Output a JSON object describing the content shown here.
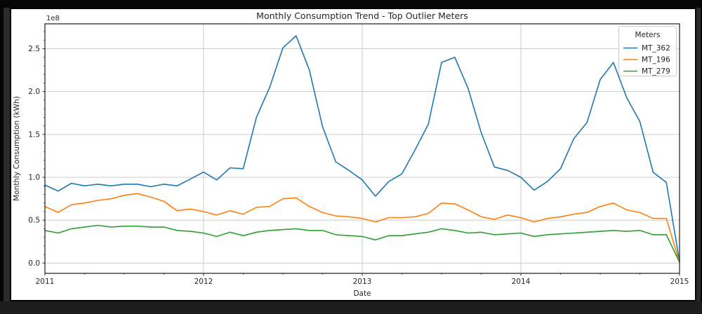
{
  "window": {
    "background_color": "#2b2b2b",
    "frame_color": "#060606",
    "figure_background": "#ffffff"
  },
  "chart_data": {
    "type": "line",
    "title": "Monthly Consumption Trend - Top Outlier Meters",
    "xlabel": "Date",
    "ylabel": "Monthly Consumption (kWh)",
    "y_offset_text": "1e8",
    "y_value_scale": "values are in units of 1e8 kWh",
    "x_interval": "month",
    "x_start": "2011-01",
    "x_end": "2015-01",
    "xlim": [
      0,
      48
    ],
    "ylim": [
      -0.12,
      2.79
    ],
    "x_tick_labels": [
      "2011",
      "2012",
      "2013",
      "2014",
      "2015"
    ],
    "x_tick_positions": [
      0,
      12,
      24,
      36,
      48
    ],
    "x_minor_tick_step": 3,
    "y_tick_labels": [
      "0.0",
      "0.5",
      "1.0",
      "1.5",
      "2.0",
      "2.5"
    ],
    "y_tick_values": [
      0,
      0.5,
      1,
      1.5,
      2,
      2.5
    ],
    "y_minor_tick_step": 0.1,
    "grid": true,
    "grid_color": "#cccccc",
    "spine_color": "#1a1a1a",
    "tick_color": "#333333",
    "text_color": "#262626",
    "legend": {
      "title": "Meters",
      "position": "upper right"
    },
    "series": [
      {
        "name": "MT_362",
        "color": "#1f77b4",
        "values": [
          0.91,
          0.84,
          0.93,
          0.9,
          0.92,
          0.9,
          0.92,
          0.92,
          0.89,
          0.92,
          0.9,
          0.98,
          1.06,
          0.97,
          1.11,
          1.1,
          1.7,
          2.05,
          2.51,
          2.65,
          2.25,
          1.59,
          1.18,
          1.08,
          0.97,
          0.78,
          0.95,
          1.04,
          1.32,
          1.62,
          2.34,
          2.4,
          2.04,
          1.52,
          1.12,
          1.08,
          1.0,
          0.85,
          0.95,
          1.1,
          1.45,
          1.64,
          2.14,
          2.34,
          1.93,
          1.65,
          1.06,
          0.94,
          0.02
        ]
      },
      {
        "name": "MT_196",
        "color": "#ff7f0e",
        "values": [
          0.66,
          0.59,
          0.68,
          0.7,
          0.73,
          0.75,
          0.79,
          0.81,
          0.77,
          0.72,
          0.61,
          0.63,
          0.6,
          0.56,
          0.61,
          0.57,
          0.65,
          0.66,
          0.75,
          0.76,
          0.66,
          0.59,
          0.55,
          0.54,
          0.52,
          0.48,
          0.53,
          0.53,
          0.54,
          0.58,
          0.7,
          0.69,
          0.62,
          0.54,
          0.51,
          0.56,
          0.53,
          0.48,
          0.52,
          0.54,
          0.57,
          0.59,
          0.66,
          0.7,
          0.62,
          0.59,
          0.52,
          0.52,
          0.01
        ]
      },
      {
        "name": "MT_279",
        "color": "#2ca02c",
        "values": [
          0.38,
          0.35,
          0.4,
          0.42,
          0.44,
          0.42,
          0.43,
          0.43,
          0.42,
          0.42,
          0.38,
          0.37,
          0.35,
          0.31,
          0.36,
          0.32,
          0.36,
          0.38,
          0.39,
          0.4,
          0.38,
          0.38,
          0.33,
          0.32,
          0.31,
          0.27,
          0.32,
          0.32,
          0.34,
          0.36,
          0.4,
          0.38,
          0.35,
          0.36,
          0.33,
          0.34,
          0.35,
          0.31,
          0.33,
          0.34,
          0.35,
          0.36,
          0.37,
          0.38,
          0.37,
          0.38,
          0.33,
          0.33,
          0.01
        ]
      }
    ]
  }
}
